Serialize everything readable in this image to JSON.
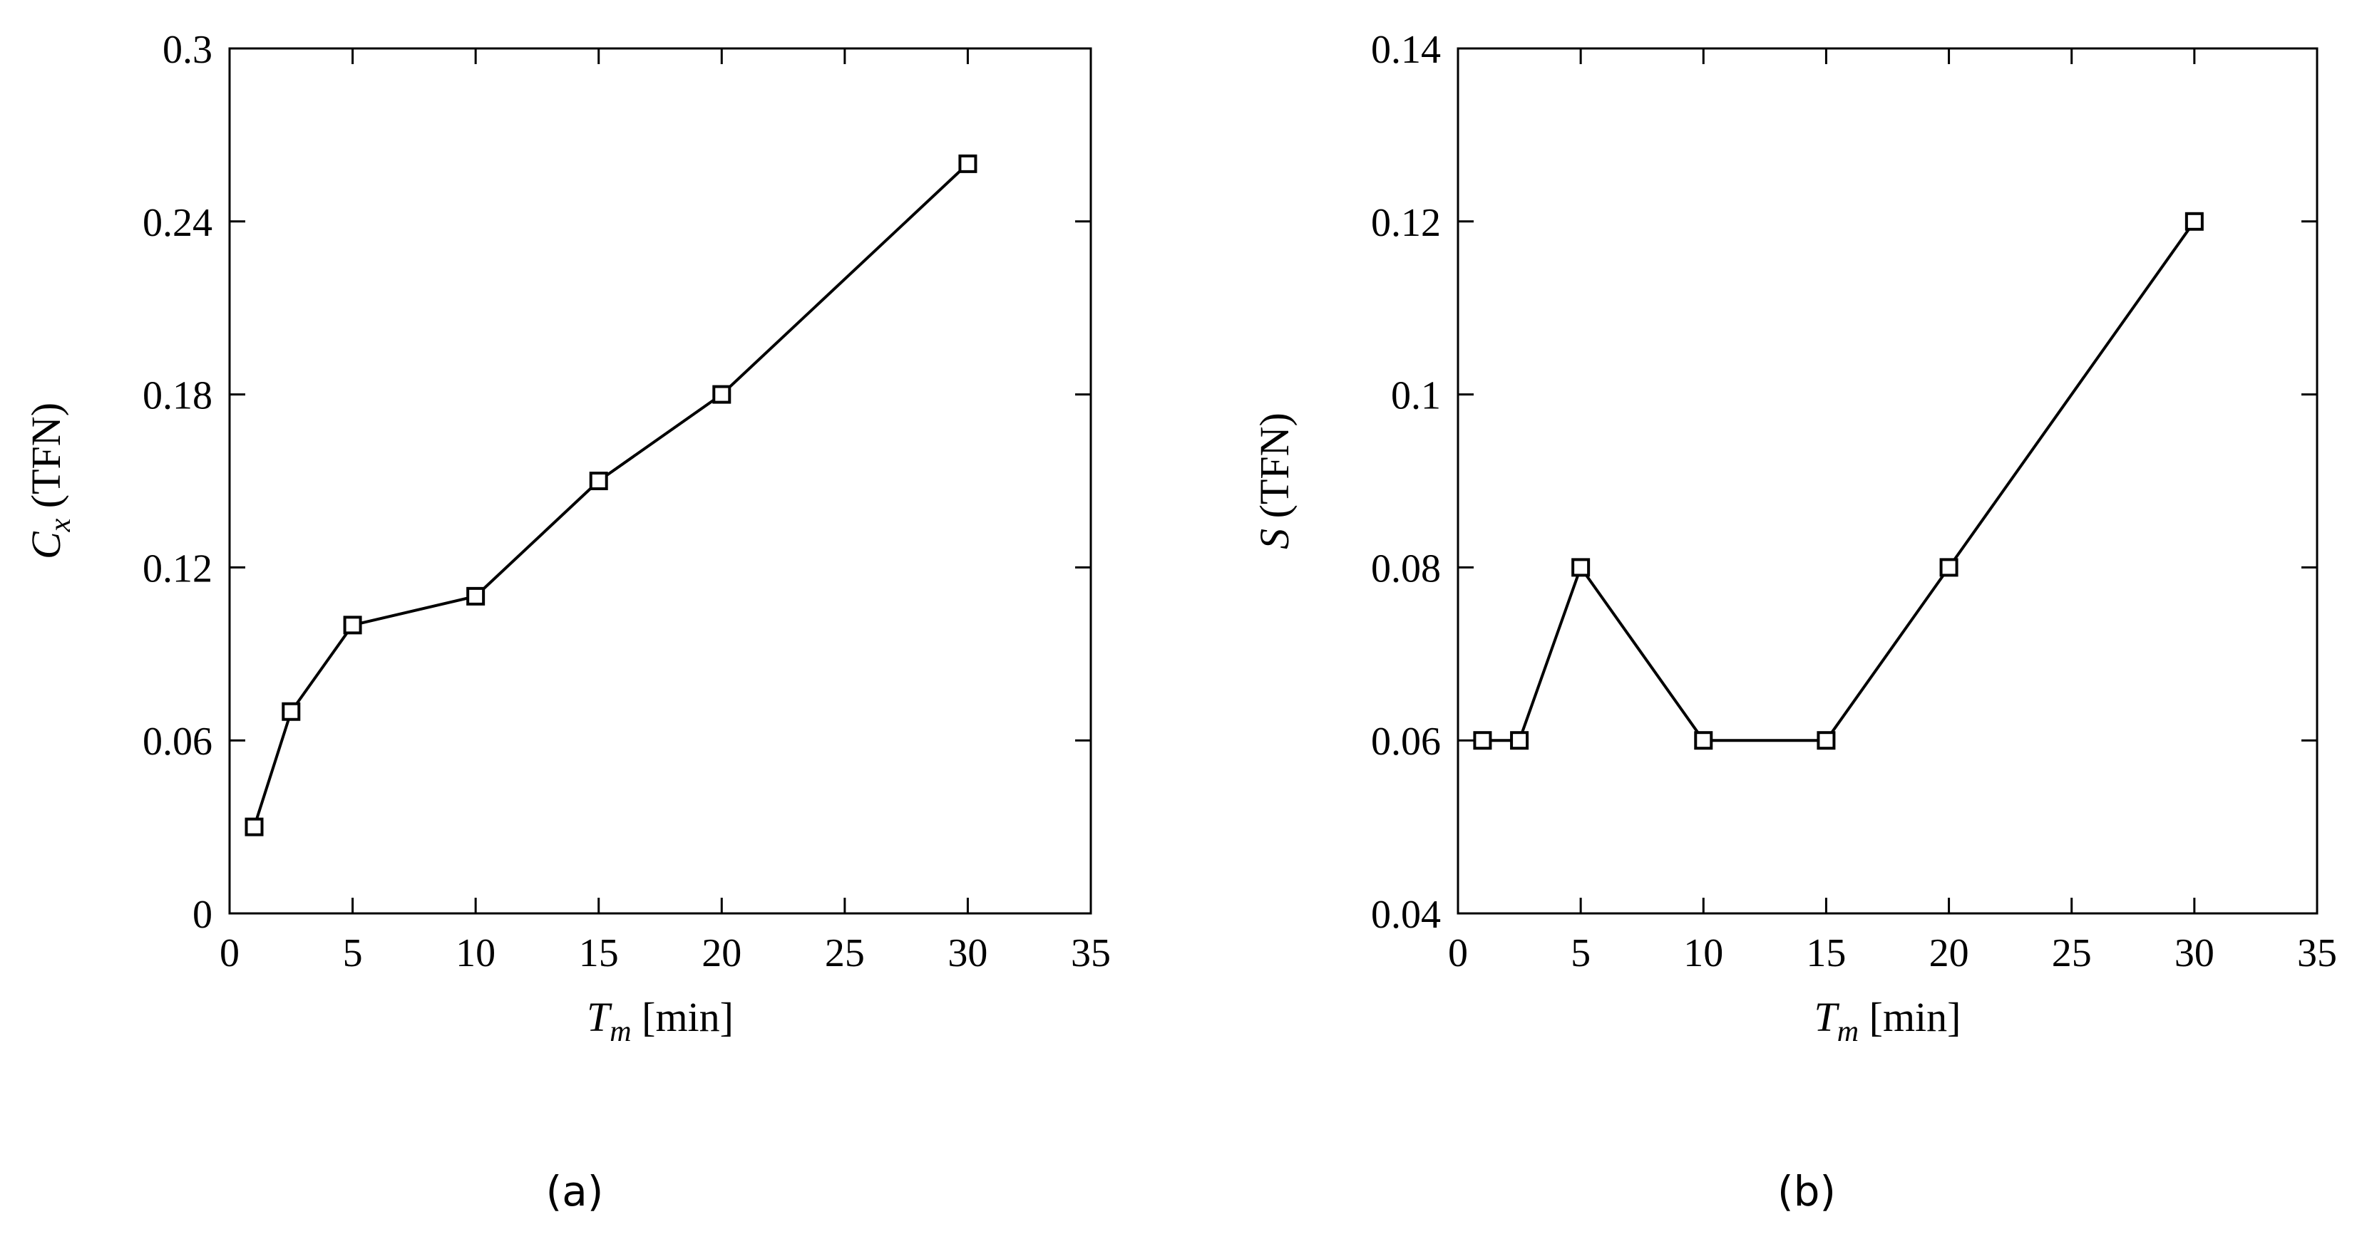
{
  "chart_data": [
    {
      "type": "line",
      "panel_label": "(a)",
      "x": [
        1,
        2.5,
        5,
        10,
        15,
        20,
        30
      ],
      "series": [
        {
          "values": [
            0.03,
            0.07,
            0.1,
            0.11,
            0.15,
            0.18,
            0.26
          ],
          "marker": "square"
        }
      ],
      "xlabel": {
        "main": "T",
        "sub": "m",
        "rest": " [min]"
      },
      "ylabel": {
        "main": "C",
        "sub": "x",
        "rest": " (TFN)"
      },
      "xlim": [
        0,
        35
      ],
      "ylim": [
        0,
        0.3
      ],
      "xticks": [
        0,
        5,
        10,
        15,
        20,
        25,
        30,
        35
      ],
      "yticks": [
        0,
        0.06,
        0.12,
        0.18,
        0.24,
        0.3
      ],
      "xtick_labels": [
        "0",
        "5",
        "10",
        "15",
        "20",
        "25",
        "30",
        "35"
      ],
      "ytick_labels": [
        "0",
        "0.06",
        "0.12",
        "0.18",
        "0.24",
        "0.3"
      ],
      "grid": false,
      "color": "#000000"
    },
    {
      "type": "line",
      "panel_label": "(b)",
      "x": [
        1,
        2.5,
        5,
        10,
        15,
        20,
        30
      ],
      "series": [
        {
          "values": [
            0.06,
            0.06,
            0.08,
            0.06,
            0.06,
            0.08,
            0.12
          ],
          "marker": "square"
        }
      ],
      "xlabel": {
        "main": "T",
        "sub": "m",
        "rest": " [min]"
      },
      "ylabel": {
        "main": "S",
        "sub": "",
        "rest": " (TFN)"
      },
      "xlim": [
        0,
        35
      ],
      "ylim": [
        0.04,
        0.14
      ],
      "xticks": [
        0,
        5,
        10,
        15,
        20,
        25,
        30,
        35
      ],
      "yticks": [
        0.04,
        0.06,
        0.08,
        0.1,
        0.12,
        0.14
      ],
      "xtick_labels": [
        "0",
        "5",
        "10",
        "15",
        "20",
        "25",
        "30",
        "35"
      ],
      "ytick_labels": [
        "0.04",
        "0.06",
        "0.08",
        "0.1",
        "0.12",
        "0.14"
      ],
      "grid": false,
      "color": "#000000"
    }
  ]
}
